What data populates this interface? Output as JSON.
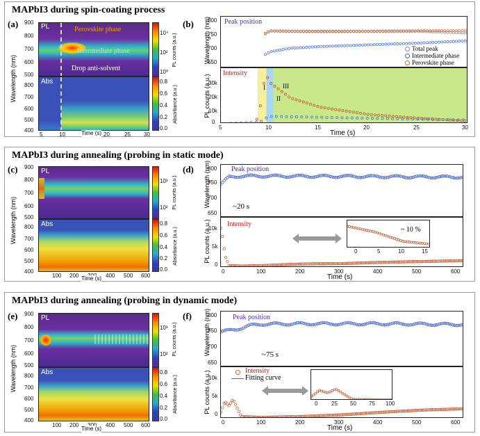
{
  "sections": [
    {
      "title": "MAPbI3 during spin-coating process",
      "a": {
        "label": "(a)",
        "pl_tag": "PL",
        "abs_tag": "Abs",
        "ann_perovskite": "Perovskite phase",
        "ann_intermediate": "Intermediate phase",
        "ann_drop": "Drop anti-solvent",
        "ylabel": "Wavelength (nm)",
        "xlabel": "Time (s)",
        "pl_yticks": [
          "900",
          "800",
          "700",
          "600",
          "500"
        ],
        "abs_yticks": [
          "800",
          "700",
          "600",
          "500",
          "400"
        ],
        "xticks": [
          "5",
          "10",
          "15",
          "20",
          "25",
          "30"
        ],
        "cbar_pl_label": "PL counts (a.u.)",
        "cbar_pl_ticks": [
          "10⁴",
          "10²",
          "10⁰"
        ],
        "cbar_abs_label": "Absorbance (a.u.)",
        "cbar_abs_ticks": [
          "0.8",
          "0.6",
          "0.4",
          "0.2",
          "0.0"
        ]
      },
      "b": {
        "label": "(b)",
        "top_title": "Peak position",
        "bot_title": "Intensity",
        "ylabel_top": "Wavelength (nm)",
        "ylabel_bot": "PL counts (a.u.)",
        "xlabel": "Time (s)",
        "top_yticks": [
          "800",
          "750",
          "700",
          "650"
        ],
        "bot_yticks": [
          "30k",
          "20k",
          "10k",
          "0"
        ],
        "xticks": [
          "5",
          "10",
          "15",
          "20",
          "25",
          "30"
        ],
        "legend": [
          "Total peak",
          "Intermediate phase",
          "Perovskite phase"
        ],
        "stage_labels": [
          "I",
          "II",
          "III"
        ]
      }
    },
    {
      "title": "MAPbI3 during annealing (probing in static mode)",
      "c": {
        "label": "(c)",
        "pl_tag": "PL",
        "abs_tag": "Abs",
        "ylabel": "Wavelength (nm)",
        "xlabel": "Time (s)",
        "pl_yticks": [
          "900",
          "800",
          "700",
          "600",
          "500"
        ],
        "abs_yticks": [
          "800",
          "700",
          "600",
          "500",
          "400"
        ],
        "xticks": [
          "100",
          "200",
          "300",
          "400",
          "500",
          "600"
        ],
        "cbar_pl_label": "PL counts (a.u.)",
        "cbar_pl_ticks": [
          "10³",
          "10²"
        ],
        "cbar_abs_label": "Absorbance (a.u.)",
        "cbar_abs_ticks": [
          "0.8",
          "0.6",
          "0.4",
          "0.2",
          "0.0"
        ]
      },
      "d": {
        "label": "(d)",
        "top_title": "Peak position",
        "bot_title": "Intensity",
        "annotation_top": "~20 s",
        "inset_annotation": "~ 10 %",
        "ylabel_top": "Wavelength (nm)",
        "ylabel_bot": "PL counts (a.u.)",
        "xlabel": "Time (s)",
        "top_yticks": [
          "800",
          "750",
          "700",
          "650"
        ],
        "bot_yticks": [
          "10k",
          "5k",
          "0"
        ],
        "xticks": [
          "0",
          "100",
          "200",
          "300",
          "400",
          "500",
          "600"
        ],
        "inset_xticks": [
          "0",
          "5",
          "10",
          "15"
        ]
      }
    },
    {
      "title": "MAPbI3 during annealing (probing in dynamic mode)",
      "e": {
        "label": "(e)",
        "pl_tag": "PL",
        "abs_tag": "Abs",
        "ylabel": "Wavelength (nm)",
        "xlabel": "Time (s)",
        "pl_yticks": [
          "900",
          "800",
          "700",
          "600",
          "500"
        ],
        "abs_yticks": [
          "800",
          "700",
          "600",
          "500",
          "400"
        ],
        "xticks": [
          "100",
          "200",
          "300",
          "400",
          "500",
          "600"
        ],
        "cbar_pl_label": "PL counts (a.u.)",
        "cbar_pl_ticks": [
          "10³",
          "10²"
        ],
        "cbar_abs_label": "Absorbance (a.u.)",
        "cbar_abs_ticks": [
          "0.8",
          "0.6",
          "0.4",
          "0.2",
          "0.0"
        ]
      },
      "f": {
        "label": "(f)",
        "top_title": "Peak position",
        "bot_title": "Intensity",
        "fit_label": "Fitting curve",
        "annotation_top": "~75 s",
        "ylabel_top": "Wavelength (nm)",
        "ylabel_bot": "PL counts (a.u.)",
        "xlabel": "Time (s)",
        "top_yticks": [
          "800",
          "750",
          "700",
          "650"
        ],
        "bot_yticks": [
          "10k",
          "5k",
          "0"
        ],
        "xticks": [
          "0",
          "100",
          "200",
          "300",
          "400",
          "500",
          "600"
        ],
        "inset_xticks": [
          "0",
          "25",
          "50",
          "75",
          "100"
        ]
      }
    }
  ],
  "chart_data": [
    {
      "type": "line",
      "panel": "(b) Peak position",
      "x_range": [
        5,
        30
      ],
      "y_range": [
        650,
        800
      ],
      "series": [
        {
          "name": "Total peak",
          "x": [
            9.5,
            10,
            12,
            15,
            20,
            25,
            30
          ],
          "y": [
            750,
            758,
            757,
            756,
            757,
            757,
            752
          ]
        },
        {
          "name": "Intermediate phase",
          "x": [
            9.5,
            10,
            12,
            15,
            20,
            25,
            30
          ],
          "y": [
            690,
            698,
            708,
            713,
            718,
            723,
            730
          ]
        },
        {
          "name": "Perovskite phase",
          "x": [
            9.5,
            10,
            12,
            15,
            20,
            25,
            30
          ],
          "y": [
            752,
            759,
            758,
            758,
            758,
            759,
            759
          ]
        }
      ]
    },
    {
      "type": "line",
      "panel": "(b) Intensity",
      "x_range": [
        5,
        30
      ],
      "y_range": [
        0,
        30000
      ],
      "series": [
        {
          "name": "Total peak",
          "x": [
            5,
            8.5,
            9,
            9.5,
            10,
            12,
            15,
            20,
            25,
            30
          ],
          "y": [
            0,
            0,
            10000,
            27000,
            22000,
            14000,
            9000,
            5000,
            3000,
            1500
          ]
        },
        {
          "name": "Intermediate phase",
          "x": [
            5,
            9,
            9.5,
            10,
            15,
            20,
            30
          ],
          "y": [
            0,
            1000,
            3000,
            4000,
            3500,
            3000,
            2000
          ]
        }
      ]
    },
    {
      "type": "scatter",
      "panel": "(d) Peak position",
      "x_range": [
        0,
        600
      ],
      "y_range": [
        650,
        800
      ],
      "series": [
        {
          "x": [
            0,
            10,
            20,
            50,
            100,
            300,
            600
          ],
          "y": [
            745,
            755,
            765,
            768,
            768,
            767,
            765
          ]
        }
      ]
    },
    {
      "type": "scatter",
      "panel": "(d) Intensity",
      "x_range": [
        0,
        600
      ],
      "y_range": [
        0,
        12000
      ],
      "series": [
        {
          "x": [
            0,
            5,
            10,
            20,
            50,
            100,
            200,
            300,
            400,
            500,
            600
          ],
          "y": [
            9500,
            7000,
            3000,
            500,
            400,
            500,
            900,
            1000,
            1300,
            1500,
            1700
          ]
        }
      ]
    },
    {
      "type": "scatter",
      "panel": "(f) Peak position",
      "x_range": [
        0,
        600
      ],
      "y_range": [
        650,
        800
      ],
      "series": [
        {
          "x": [
            0,
            25,
            50,
            75,
            100,
            200,
            400,
            600
          ],
          "y": [
            745,
            750,
            755,
            763,
            766,
            767,
            767,
            765
          ]
        }
      ]
    },
    {
      "type": "scatter",
      "panel": "(f) Intensity",
      "x_range": [
        0,
        600
      ],
      "y_range": [
        0,
        12000
      ],
      "series": [
        {
          "x": [
            0,
            10,
            20,
            30,
            40,
            50,
            100,
            200,
            300,
            400,
            500,
            600
          ],
          "y": [
            1500,
            4000,
            3000,
            4500,
            2500,
            500,
            300,
            500,
            900,
            1500,
            2000,
            2300
          ]
        }
      ]
    }
  ]
}
